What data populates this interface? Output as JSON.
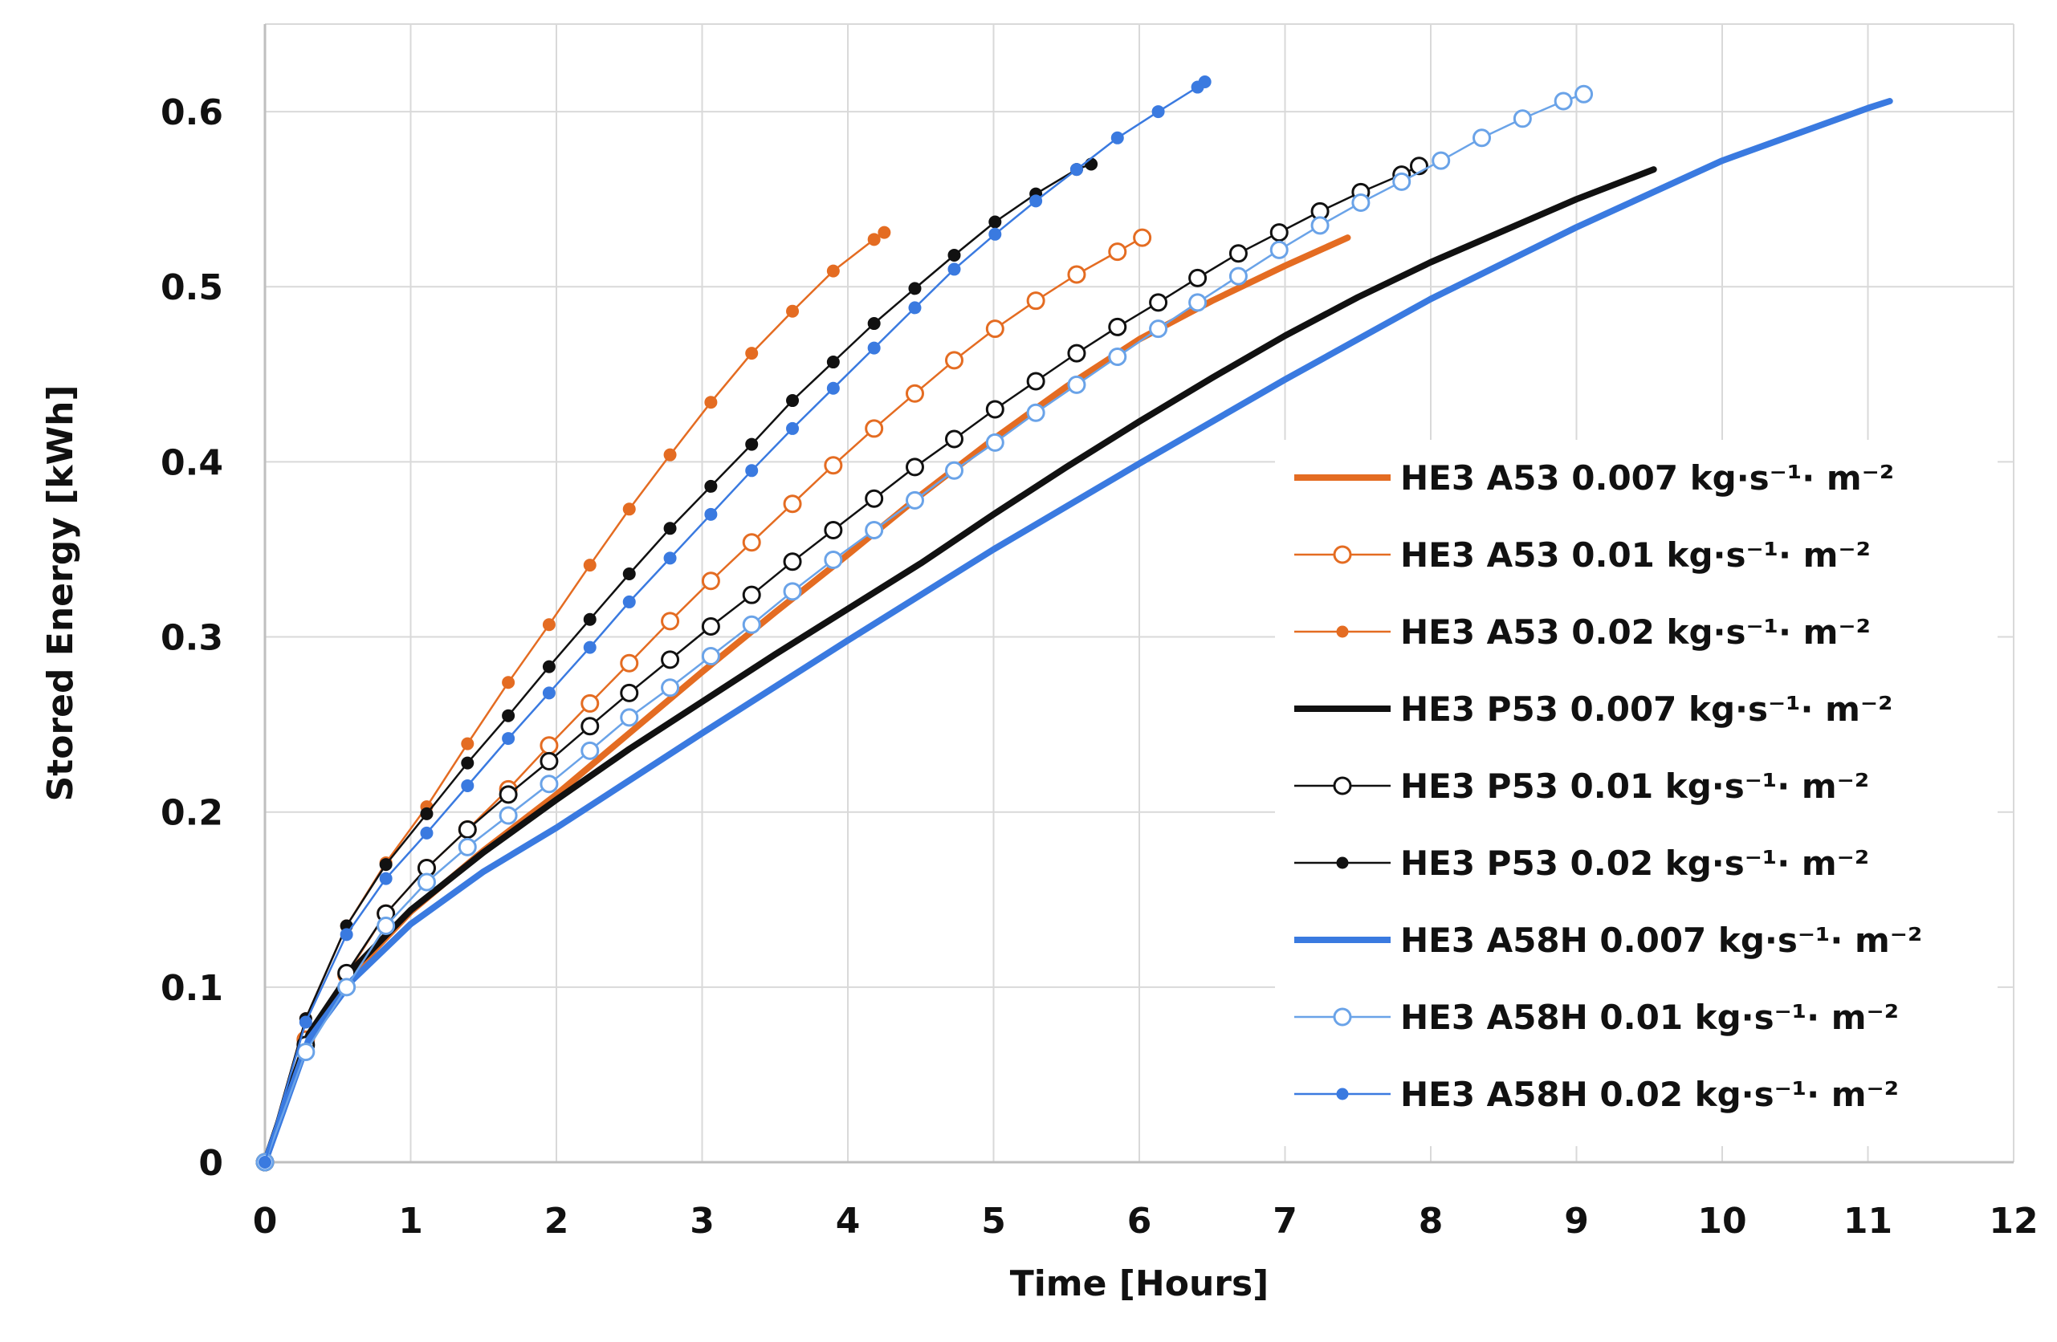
{
  "chart_data": {
    "type": "line",
    "title": "",
    "xlabel": "Time [Hours]",
    "ylabel": "Stored Energy [kWh]",
    "xlim": [
      0,
      12
    ],
    "ylim": [
      0,
      0.65
    ],
    "xticks": [
      "0",
      "1",
      "2",
      "3",
      "4",
      "5",
      "6",
      "7",
      "8",
      "9",
      "10",
      "11",
      "12"
    ],
    "yticks": [
      "0",
      "0.1",
      "0.2",
      "0.3",
      "0.4",
      "0.5",
      "0.6"
    ],
    "grid": true,
    "legend_position": "right",
    "series": [
      {
        "name": "HE3 A53 0.007 kg·s⁻¹· m⁻²",
        "color": "#e46c22",
        "style": "thick",
        "x": [
          0,
          0.3,
          0.6,
          1,
          1.5,
          2,
          2.5,
          3,
          3.5,
          4,
          4.5,
          5,
          5.5,
          6,
          6.5,
          7,
          7.43
        ],
        "y": [
          0,
          0.072,
          0.108,
          0.143,
          0.178,
          0.21,
          0.245,
          0.28,
          0.314,
          0.347,
          0.381,
          0.413,
          0.443,
          0.47,
          0.492,
          0.512,
          0.528
        ]
      },
      {
        "name": "HE3 A53 0.01 kg·s⁻¹· m⁻²",
        "color": "#e46c22",
        "style": "open-circle",
        "x": [
          0,
          0.28,
          0.56,
          0.83,
          1.11,
          1.39,
          1.67,
          1.95,
          2.23,
          2.5,
          2.78,
          3.06,
          3.34,
          3.62,
          3.9,
          4.18,
          4.46,
          4.73,
          5.01,
          5.29,
          5.57,
          5.85,
          6.02
        ],
        "y": [
          0,
          0.07,
          0.107,
          0.142,
          0.168,
          0.19,
          0.213,
          0.238,
          0.262,
          0.285,
          0.309,
          0.332,
          0.354,
          0.376,
          0.398,
          0.419,
          0.439,
          0.458,
          0.476,
          0.492,
          0.507,
          0.52,
          0.528
        ]
      },
      {
        "name": "HE3 A53 0.02 kg·s⁻¹· m⁻²",
        "color": "#e46c22",
        "style": "filled-dot",
        "x": [
          0,
          0.28,
          0.56,
          0.83,
          1.11,
          1.39,
          1.67,
          1.95,
          2.23,
          2.5,
          2.78,
          3.06,
          3.34,
          3.62,
          3.9,
          4.18,
          4.25
        ],
        "y": [
          0,
          0.082,
          0.135,
          0.171,
          0.203,
          0.239,
          0.274,
          0.307,
          0.341,
          0.373,
          0.404,
          0.434,
          0.462,
          0.486,
          0.509,
          0.527,
          0.531
        ]
      },
      {
        "name": "HE3 P53 0.007 kg·s⁻¹· m⁻²",
        "color": "#111111",
        "style": "thick",
        "x": [
          0,
          0.3,
          0.6,
          1,
          1.5,
          2,
          2.5,
          3,
          3.5,
          4,
          4.5,
          5,
          5.5,
          6,
          6.5,
          7,
          7.5,
          8,
          8.5,
          9,
          9.53
        ],
        "y": [
          0,
          0.073,
          0.11,
          0.144,
          0.177,
          0.207,
          0.236,
          0.263,
          0.29,
          0.316,
          0.342,
          0.37,
          0.397,
          0.423,
          0.448,
          0.472,
          0.494,
          0.514,
          0.532,
          0.55,
          0.567
        ]
      },
      {
        "name": "HE3 P53 0.01 kg·s⁻¹· m⁻²",
        "color": "#111111",
        "style": "open-circle",
        "x": [
          0,
          0.28,
          0.56,
          0.83,
          1.11,
          1.39,
          1.67,
          1.95,
          2.23,
          2.5,
          2.78,
          3.06,
          3.34,
          3.62,
          3.9,
          4.18,
          4.46,
          4.73,
          5.01,
          5.29,
          5.57,
          5.85,
          6.13,
          6.4,
          6.68,
          6.96,
          7.24,
          7.52,
          7.8,
          7.92
        ],
        "y": [
          0,
          0.067,
          0.108,
          0.142,
          0.168,
          0.19,
          0.21,
          0.229,
          0.249,
          0.268,
          0.287,
          0.306,
          0.324,
          0.343,
          0.361,
          0.379,
          0.397,
          0.413,
          0.43,
          0.446,
          0.462,
          0.477,
          0.491,
          0.505,
          0.519,
          0.531,
          0.543,
          0.554,
          0.564,
          0.569
        ]
      },
      {
        "name": "HE3 P53 0.02 kg·s⁻¹· m⁻²",
        "color": "#111111",
        "style": "filled-dot",
        "x": [
          0,
          0.28,
          0.56,
          0.83,
          1.11,
          1.39,
          1.67,
          1.95,
          2.23,
          2.5,
          2.78,
          3.06,
          3.34,
          3.62,
          3.9,
          4.18,
          4.46,
          4.73,
          5.01,
          5.29,
          5.57,
          5.67
        ],
        "y": [
          0,
          0.082,
          0.135,
          0.17,
          0.199,
          0.228,
          0.255,
          0.283,
          0.31,
          0.336,
          0.362,
          0.386,
          0.41,
          0.435,
          0.457,
          0.479,
          0.499,
          0.518,
          0.537,
          0.553,
          0.567,
          0.57
        ]
      },
      {
        "name": "HE3 A58H 0.007 kg·s⁻¹· m⁻²",
        "color": "#3a7ae0",
        "style": "thick",
        "x": [
          0,
          0.3,
          0.6,
          1,
          1.5,
          2,
          3,
          4,
          5,
          6,
          7,
          8,
          9,
          10,
          11,
          11.15
        ],
        "y": [
          0,
          0.07,
          0.104,
          0.136,
          0.166,
          0.191,
          0.245,
          0.298,
          0.35,
          0.399,
          0.447,
          0.493,
          0.534,
          0.572,
          0.602,
          0.606
        ]
      },
      {
        "name": "HE3 A58H 0.01 kg·s⁻¹· m⁻²",
        "color": "#6aa3e8",
        "style": "open-circle",
        "x": [
          0,
          0.28,
          0.56,
          0.83,
          1.11,
          1.39,
          1.67,
          1.95,
          2.23,
          2.5,
          2.78,
          3.06,
          3.34,
          3.62,
          3.9,
          4.18,
          4.46,
          4.73,
          5.01,
          5.29,
          5.57,
          5.85,
          6.13,
          6.4,
          6.68,
          6.96,
          7.24,
          7.52,
          7.8,
          8.07,
          8.35,
          8.63,
          8.91,
          9.05
        ],
        "y": [
          0,
          0.063,
          0.1,
          0.135,
          0.16,
          0.18,
          0.198,
          0.216,
          0.235,
          0.254,
          0.271,
          0.289,
          0.307,
          0.326,
          0.344,
          0.361,
          0.378,
          0.395,
          0.411,
          0.428,
          0.444,
          0.46,
          0.476,
          0.491,
          0.506,
          0.521,
          0.535,
          0.548,
          0.56,
          0.572,
          0.585,
          0.596,
          0.606,
          0.61
        ]
      },
      {
        "name": "HE3 A58H 0.02 kg·s⁻¹· m⁻²",
        "color": "#3a7ae0",
        "style": "filled-dot",
        "x": [
          0,
          0.28,
          0.56,
          0.83,
          1.11,
          1.39,
          1.67,
          1.95,
          2.23,
          2.5,
          2.78,
          3.06,
          3.34,
          3.62,
          3.9,
          4.18,
          4.46,
          4.73,
          5.01,
          5.29,
          5.57,
          5.85,
          6.13,
          6.4,
          6.45
        ],
        "y": [
          0,
          0.08,
          0.13,
          0.162,
          0.188,
          0.215,
          0.242,
          0.268,
          0.294,
          0.32,
          0.345,
          0.37,
          0.395,
          0.419,
          0.442,
          0.465,
          0.488,
          0.51,
          0.53,
          0.549,
          0.567,
          0.585,
          0.6,
          0.614,
          0.617
        ]
      }
    ]
  }
}
